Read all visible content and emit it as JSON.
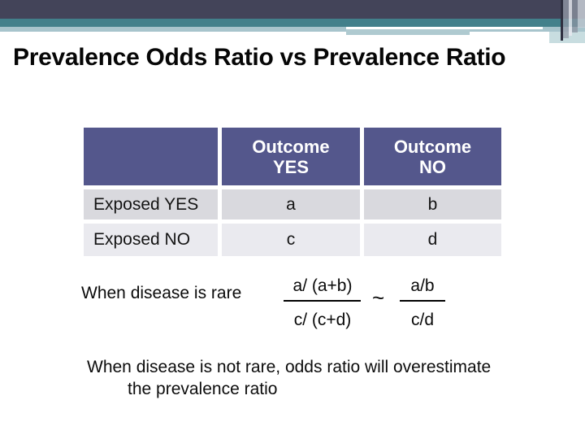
{
  "title": "Prevalence Odds Ratio vs Prevalence Ratio",
  "table": {
    "column_headers": [
      "",
      "Outcome\nYES",
      "Outcome\nNO"
    ],
    "rows": [
      {
        "label": "Exposed YES",
        "cells": [
          "a",
          "b"
        ]
      },
      {
        "label": "Exposed NO",
        "cells": [
          "c",
          "d"
        ]
      }
    ]
  },
  "formula": {
    "lead_text": "When disease is rare",
    "left_fraction": {
      "numerator": "a/ (a+b)",
      "denominator": "c/ (c+d)"
    },
    "approx_symbol": "~",
    "right_fraction": {
      "numerator": "a/b",
      "denominator": "c/d"
    }
  },
  "note": {
    "line1": "When disease is not rare, odds ratio will overestimate",
    "line2": "the prevalence ratio"
  },
  "colors": {
    "header_bar_dark": "#434459",
    "header_bar_teal": "#42808B",
    "header_bar_light": "#A7C4CC",
    "header_bar_light2": "#AFCAD0",
    "header_pale_block": "#C8DDE0",
    "table_header_bg": "#54578C",
    "table_header_text": "#FFFFFF",
    "table_row_odd_bg": "#D9D9DE",
    "table_row_even_bg": "#EAEAEF",
    "body_text": "#0A0A0A"
  }
}
